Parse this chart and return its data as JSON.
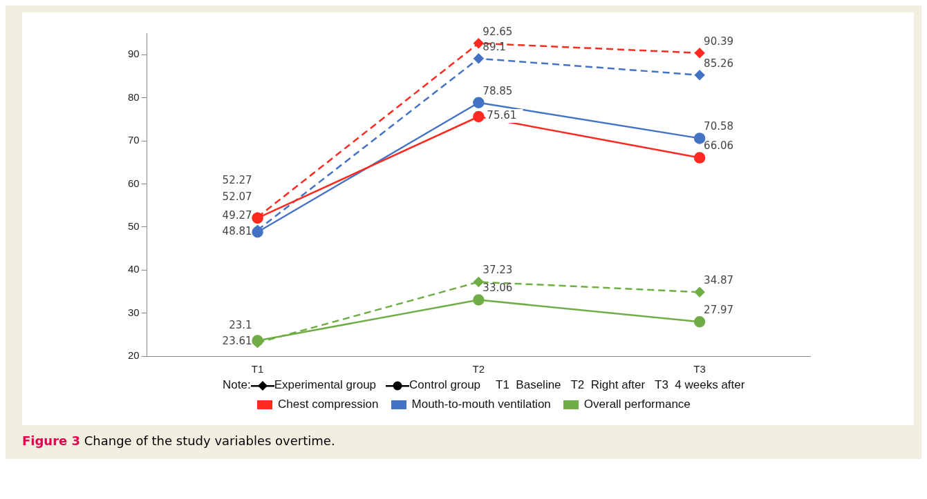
{
  "chart_data": {
    "type": "line",
    "categories": [
      "T1",
      "T2",
      "T3"
    ],
    "series": [
      {
        "color": "#ff2a1f",
        "line_style": "dashed",
        "marker": "diamond",
        "values": [
          52.27,
          92.65,
          90.39
        ]
      },
      {
        "color": "#ff2a1f",
        "line_style": "solid",
        "marker": "circle",
        "values": [
          52.07,
          75.61,
          66.06
        ]
      },
      {
        "color": "#4472c4",
        "line_style": "dashed",
        "marker": "diamond",
        "values": [
          49.27,
          89.1,
          85.26
        ]
      },
      {
        "color": "#4472c4",
        "line_style": "solid",
        "marker": "circle",
        "values": [
          48.81,
          78.85,
          70.58
        ]
      },
      {
        "color": "#70ad47",
        "line_style": "dashed",
        "marker": "diamond",
        "values": [
          23.1,
          37.23,
          34.87
        ]
      },
      {
        "color": "#70ad47",
        "line_style": "solid",
        "marker": "circle",
        "values": [
          23.61,
          33.06,
          27.97
        ]
      }
    ],
    "ylim": [
      20,
      95
    ],
    "yticks": [
      20,
      30,
      40,
      50,
      60,
      70,
      80,
      90
    ],
    "grid": false,
    "legend": false,
    "data_labels": true,
    "annotations": [
      "Note:",
      "Experimental group",
      "Control group",
      "T1  Baseline   T2  Right after   T3  4 weeks after",
      "Chest compression",
      "Mouth-to-mouth ventilation",
      "Overall performance",
      "Figure 3 Change of the study variables overtime."
    ]
  }
}
